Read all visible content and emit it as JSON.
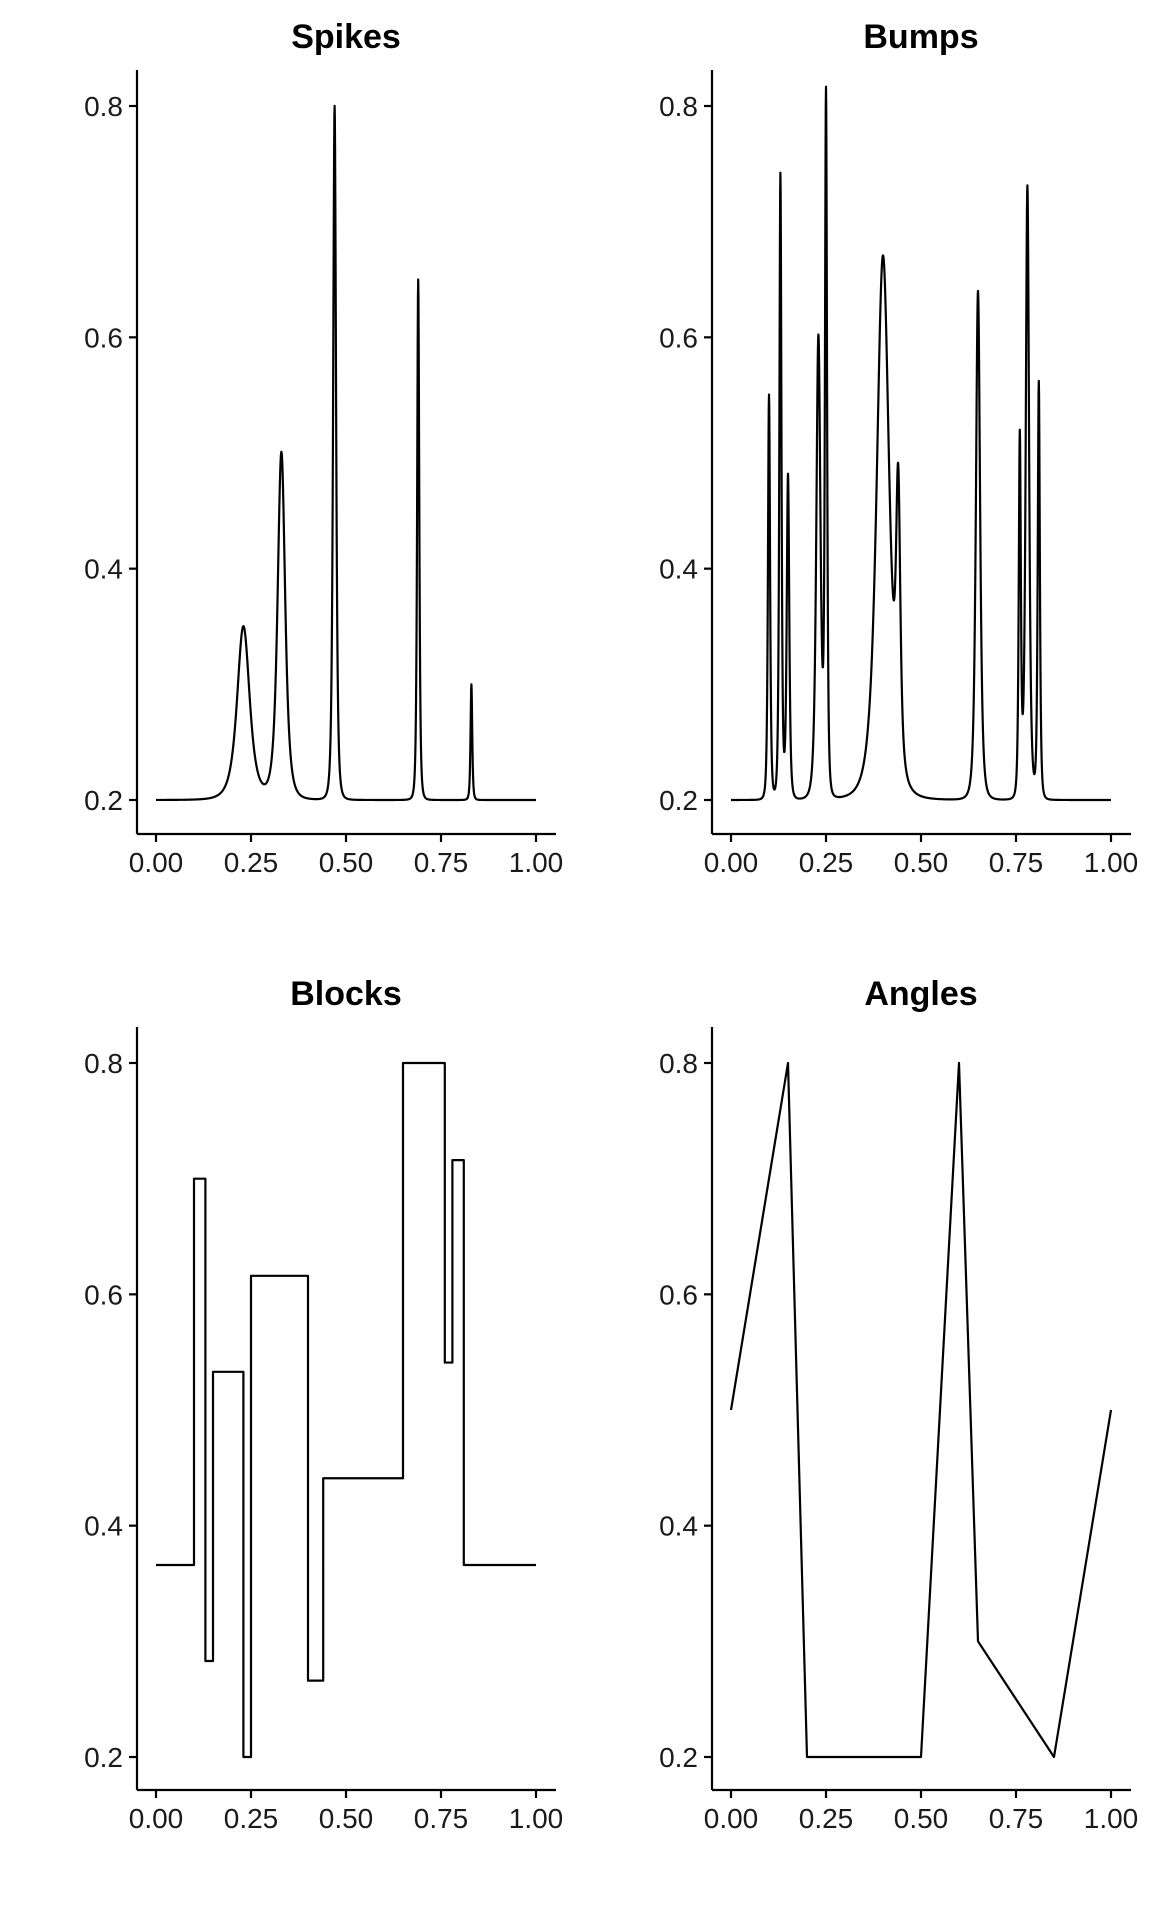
{
  "figure": {
    "panels": [
      "Spikes",
      "Bumps",
      "Blocks",
      "Angles"
    ]
  },
  "chart_data": [
    {
      "type": "line",
      "title": "Spikes",
      "xlabel": "",
      "ylabel": "",
      "xlim": [
        0,
        1
      ],
      "ylim": [
        0.2,
        0.8
      ],
      "x_ticks": [
        "0.00",
        "0.25",
        "0.50",
        "0.75",
        "1.00"
      ],
      "y_ticks": [
        "0.2",
        "0.4",
        "0.6",
        "0.8"
      ],
      "grid": false,
      "peaks": [
        {
          "x": 0.23,
          "y": 0.35,
          "width": 0.03
        },
        {
          "x": 0.33,
          "y": 0.5,
          "width": 0.018
        },
        {
          "x": 0.47,
          "y": 0.8,
          "width": 0.007
        },
        {
          "x": 0.69,
          "y": 0.65,
          "width": 0.005
        },
        {
          "x": 0.83,
          "y": 0.3,
          "width": 0.004
        }
      ],
      "baseline": 0.2
    },
    {
      "type": "line",
      "title": "Bumps",
      "xlabel": "",
      "ylabel": "",
      "xlim": [
        0,
        1
      ],
      "ylim": [
        0.2,
        0.8
      ],
      "x_ticks": [
        "0.00",
        "0.25",
        "0.50",
        "0.75",
        "1.00"
      ],
      "y_ticks": [
        "0.2",
        "0.4",
        "0.6",
        "0.8"
      ],
      "grid": false,
      "peaks": [
        {
          "x": 0.1,
          "y": 0.55,
          "width": 0.005
        },
        {
          "x": 0.13,
          "y": 0.74,
          "width": 0.005
        },
        {
          "x": 0.15,
          "y": 0.48,
          "width": 0.006
        },
        {
          "x": 0.23,
          "y": 0.6,
          "width": 0.01
        },
        {
          "x": 0.25,
          "y": 0.8,
          "width": 0.005
        },
        {
          "x": 0.4,
          "y": 0.67,
          "width": 0.03
        },
        {
          "x": 0.44,
          "y": 0.43,
          "width": 0.01
        },
        {
          "x": 0.65,
          "y": 0.64,
          "width": 0.01
        },
        {
          "x": 0.76,
          "y": 0.51,
          "width": 0.005
        },
        {
          "x": 0.78,
          "y": 0.73,
          "width": 0.008
        },
        {
          "x": 0.81,
          "y": 0.56,
          "width": 0.005
        }
      ],
      "baseline": 0.2
    },
    {
      "type": "line",
      "title": "Blocks",
      "xlabel": "",
      "ylabel": "",
      "xlim": [
        0,
        1
      ],
      "ylim": [
        0.2,
        0.8
      ],
      "x_ticks": [
        "0.00",
        "0.25",
        "0.50",
        "0.75",
        "1.00"
      ],
      "y_ticks": [
        "0.2",
        "0.4",
        "0.6",
        "0.8"
      ],
      "grid": false,
      "step": true,
      "x": [
        0.0,
        0.1,
        0.13,
        0.15,
        0.23,
        0.25,
        0.4,
        0.44,
        0.65,
        0.76,
        0.78,
        0.81
      ],
      "y": [
        0.366,
        0.7,
        0.283,
        0.533,
        0.2,
        0.616,
        0.266,
        0.441,
        0.8,
        0.541,
        0.716,
        0.366
      ],
      "x_end": 1.0
    },
    {
      "type": "line",
      "title": "Angles",
      "xlabel": "",
      "ylabel": "",
      "xlim": [
        0,
        1
      ],
      "ylim": [
        0.2,
        0.8
      ],
      "x_ticks": [
        "0.00",
        "0.25",
        "0.50",
        "0.75",
        "1.00"
      ],
      "y_ticks": [
        "0.2",
        "0.4",
        "0.6",
        "0.8"
      ],
      "grid": false,
      "x": [
        0.0,
        0.15,
        0.2,
        0.5,
        0.6,
        0.65,
        0.85,
        1.0
      ],
      "y": [
        0.5,
        0.8,
        0.2,
        0.2,
        0.8,
        0.3,
        0.2,
        0.5
      ]
    }
  ]
}
